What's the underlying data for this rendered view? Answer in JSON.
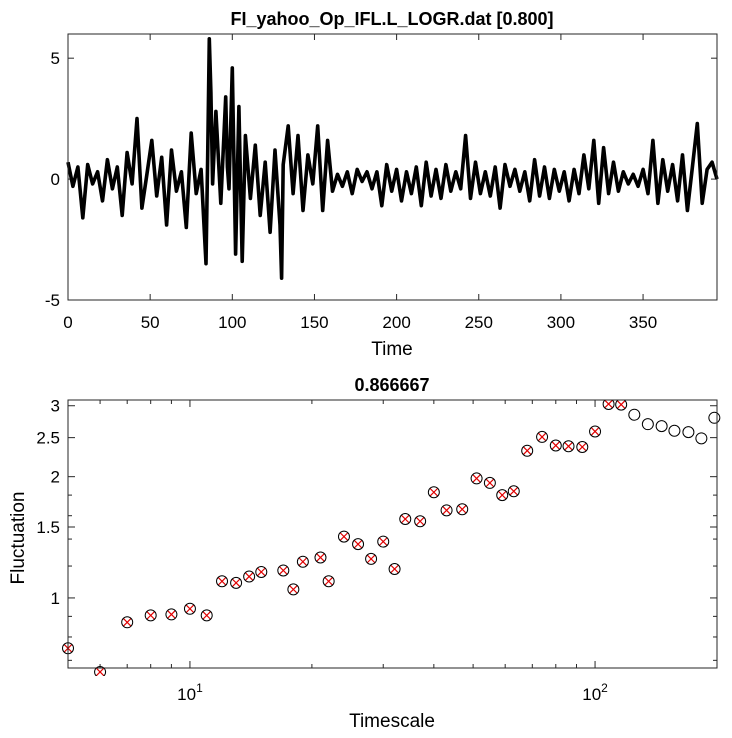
{
  "chart_data": [
    {
      "type": "line",
      "title": "FI_yahoo_Op_IFL.L_LOGR.dat [0.800]",
      "xlabel": "Time",
      "ylabel": "",
      "xlim": [
        0,
        395
      ],
      "ylim": [
        -5,
        6
      ],
      "xticks": [
        0,
        50,
        100,
        150,
        200,
        250,
        300,
        350
      ],
      "yticks": [
        -5,
        0,
        5
      ],
      "grid": false,
      "series": [
        {
          "color": "#000000",
          "x": [
            0,
            3,
            6,
            9,
            12,
            15,
            18,
            21,
            24,
            27,
            30,
            33,
            36,
            39,
            42,
            45,
            48,
            51,
            54,
            57,
            60,
            63,
            66,
            69,
            72,
            75,
            78,
            81,
            84,
            85,
            86,
            87,
            88,
            90,
            93,
            96,
            97,
            98,
            100,
            102,
            104,
            106,
            108,
            111,
            114,
            117,
            120,
            123,
            126,
            129,
            130,
            131,
            134,
            137,
            140,
            143,
            146,
            149,
            152,
            155,
            158,
            161,
            164,
            167,
            170,
            173,
            176,
            179,
            182,
            185,
            188,
            191,
            194,
            197,
            200,
            203,
            206,
            209,
            212,
            215,
            218,
            221,
            224,
            227,
            230,
            233,
            236,
            239,
            242,
            245,
            248,
            251,
            254,
            257,
            260,
            263,
            266,
            269,
            272,
            275,
            278,
            281,
            284,
            287,
            290,
            293,
            296,
            299,
            302,
            305,
            308,
            311,
            314,
            317,
            320,
            323,
            326,
            329,
            332,
            335,
            338,
            341,
            344,
            347,
            350,
            353,
            356,
            359,
            362,
            365,
            368,
            371,
            374,
            377,
            380,
            383,
            386,
            389,
            392,
            395
          ],
          "y": [
            0.7,
            -0.3,
            0.5,
            -1.6,
            0.6,
            -0.2,
            0.3,
            -0.9,
            0.8,
            -0.4,
            0.5,
            -1.5,
            1.1,
            -0.2,
            2.5,
            -1.2,
            0.2,
            1.6,
            -0.7,
            0.9,
            -1.9,
            1.2,
            -0.5,
            0.3,
            -2.0,
            1.9,
            -0.6,
            0.4,
            -3.5,
            1.0,
            5.8,
            3.6,
            -0.2,
            2.8,
            -1.0,
            3.4,
            0.5,
            -0.4,
            4.6,
            -3.1,
            3.0,
            -3.4,
            1.8,
            -0.8,
            1.4,
            -1.5,
            0.7,
            -2.2,
            1.2,
            -1.9,
            -4.1,
            0.6,
            2.2,
            -0.6,
            1.8,
            -1.3,
            1.0,
            -0.2,
            2.2,
            -1.3,
            1.6,
            -0.5,
            0.2,
            -0.3,
            0.3,
            -0.6,
            0.4,
            -0.1,
            0.3,
            -0.4,
            0.3,
            -1.1,
            0.6,
            -0.5,
            0.4,
            -0.9,
            0.3,
            -0.6,
            0.5,
            -1.1,
            0.7,
            -0.7,
            0.4,
            -0.8,
            0.6,
            -0.5,
            0.3,
            -0.4,
            1.8,
            -0.8,
            0.7,
            -0.6,
            0.3,
            -0.7,
            0.5,
            -1.2,
            0.6,
            -0.3,
            0.4,
            -0.5,
            0.3,
            -0.9,
            0.8,
            -0.7,
            0.5,
            -0.8,
            0.4,
            -0.5,
            0.3,
            -0.9,
            0.4,
            -0.6,
            1.0,
            -0.4,
            1.6,
            -1.0,
            1.3,
            -0.6,
            0.7,
            -0.5,
            0.3,
            -0.2,
            0.2,
            -0.3,
            0.4,
            -0.6,
            1.6,
            -1.0,
            0.8,
            -0.5,
            0.6,
            -0.9,
            1.0,
            -1.3,
            0.5,
            2.3,
            -1.0,
            0.4,
            0.7,
            0.0
          ]
        }
      ]
    },
    {
      "type": "scatter",
      "title": "0.866667",
      "xlabel": "Timescale",
      "ylabel": "Fluctuation",
      "xscale": "log",
      "yscale": "log",
      "xlim": [
        5,
        200
      ],
      "ylim": [
        0.67,
        3.1
      ],
      "xtick_labels": [
        "10^1",
        "10^2"
      ],
      "ytick_labels": [
        "1",
        "1.5",
        "2",
        "2.5",
        "3"
      ],
      "grid": false,
      "series": [
        {
          "marker": "circle-x",
          "colors": {
            "circle": "#000000",
            "cross": "#e00000"
          },
          "x": [
            5,
            6,
            7,
            8,
            9,
            10,
            11,
            12,
            13,
            14,
            15,
            17,
            18,
            19,
            21,
            22,
            24,
            26,
            28,
            30,
            32,
            34,
            37,
            40,
            43,
            47,
            51,
            55,
            59,
            63,
            68,
            74,
            80,
            86,
            93,
            100,
            108,
            116
          ],
          "y": [
            0.75,
            0.655,
            0.87,
            0.905,
            0.91,
            0.94,
            0.905,
            1.1,
            1.09,
            1.13,
            1.16,
            1.17,
            1.05,
            1.23,
            1.26,
            1.1,
            1.42,
            1.36,
            1.25,
            1.38,
            1.18,
            1.57,
            1.55,
            1.83,
            1.65,
            1.66,
            1.98,
            1.93,
            1.8,
            1.84,
            2.32,
            2.51,
            2.39,
            2.38,
            2.37,
            2.59,
            3.03,
            3.02
          ]
        },
        {
          "marker": "circle",
          "colors": {
            "circle": "#000000"
          },
          "x": [
            125,
            135,
            146,
            157,
            170,
            183,
            197
          ],
          "y": [
            2.85,
            2.7,
            2.67,
            2.6,
            2.58,
            2.49,
            2.8
          ]
        }
      ]
    }
  ]
}
